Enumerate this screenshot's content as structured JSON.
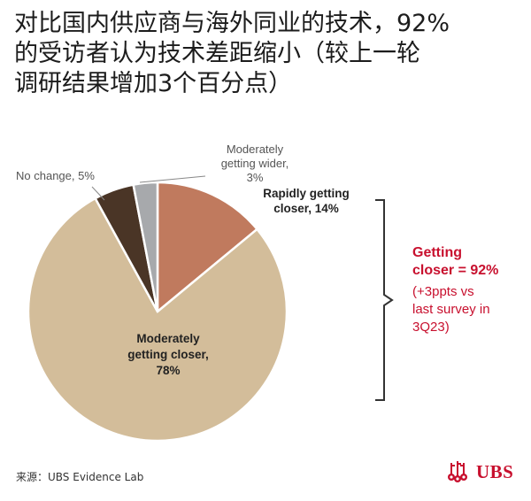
{
  "title": {
    "line1": "对比国内供应商与海外同业的技术，92%",
    "line2": "的受访者认为技术差距缩小（较上一轮",
    "line3": "调研结果增加3个百分点）"
  },
  "chart_data": {
    "type": "pie",
    "slices": [
      {
        "name": "Rapidly getting closer",
        "value": 14,
        "color": "#c07a5e",
        "label_lines": [
          "Rapidly getting",
          "closer, 14%"
        ],
        "label_bold": true
      },
      {
        "name": "Moderately getting closer",
        "value": 78,
        "color": "#d3bd9a",
        "label_lines": [
          "Moderately",
          "getting closer,",
          "78%"
        ],
        "label_bold": true
      },
      {
        "name": "No change",
        "value": 5,
        "color": "#4a3526",
        "label_lines": [
          "No change, 5%"
        ],
        "label_bold": false
      },
      {
        "name": "Moderately getting wider",
        "value": 3,
        "color": "#a7a9ac",
        "label_lines": [
          "Moderately",
          "getting wider,",
          "3%"
        ],
        "label_bold": false
      }
    ],
    "annotation": {
      "headline_lines": [
        "Getting",
        "closer = 92%"
      ],
      "detail_lines": [
        "(+3ppts vs",
        "last survey in",
        "3Q23)"
      ],
      "color": "#c8102e"
    }
  },
  "source": "来源：UBS Evidence Lab",
  "logo": {
    "text": "UBS",
    "color": "#c8102e"
  }
}
